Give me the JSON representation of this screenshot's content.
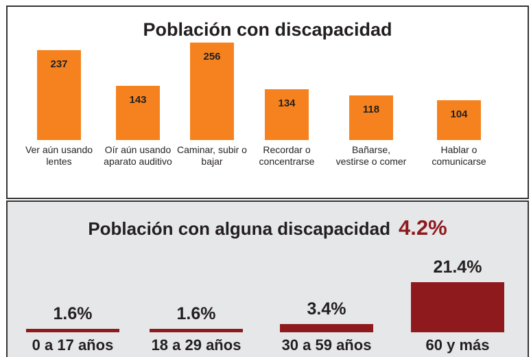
{
  "chart_data": [
    {
      "type": "bar",
      "title": "Población con discapacidad",
      "categories": [
        "Ver aún usando lentes",
        "Oír aún usando aparato auditivo",
        "Caminar, subir o bajar",
        "Recordar o concentrarse",
        "Bañarse, vestirse o comer",
        "Hablar o comunicarse"
      ],
      "values": [
        237,
        143,
        256,
        134,
        118,
        104
      ],
      "color": "#f5821f"
    },
    {
      "type": "bar",
      "title": "Población con alguna discapacidad",
      "annotation": "4.2%",
      "categories": [
        "0 a 17 años",
        "18 a 29 años",
        "30 a 59 años",
        "60 y más"
      ],
      "values": [
        1.6,
        1.6,
        3.4,
        21.4
      ],
      "value_labels": [
        "1.6%",
        "1.6%",
        "3.4%",
        "21.4%"
      ],
      "color": "#8e1a1d"
    }
  ]
}
